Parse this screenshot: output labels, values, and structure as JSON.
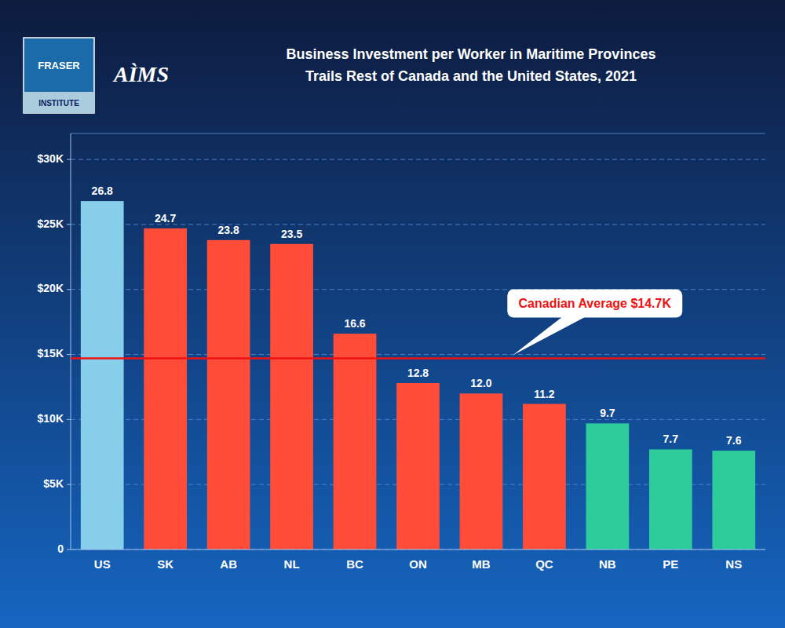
{
  "chart_data": {
    "type": "bar",
    "title": "Business Investment per Worker in Maritime Provinces",
    "subtitle": "Trails Rest of Canada and the United States, 2021",
    "categories": [
      "US",
      "SK",
      "AB",
      "NL",
      "BC",
      "ON",
      "MB",
      "QC",
      "NB",
      "PE",
      "NS"
    ],
    "values": [
      26800,
      24700,
      23800,
      23500,
      16600,
      12800,
      12000,
      11200,
      9700,
      7700,
      7600
    ],
    "value_labels": [
      "26.8",
      "24.7",
      "23.8",
      "23.5",
      "16.6",
      "12.8",
      "12.0",
      "11.2",
      "9.7",
      "7.7",
      "7.6"
    ],
    "data_labels": true,
    "colors": [
      "#87CEEB",
      "#FF4D3A",
      "#FF4D3A",
      "#FF4D3A",
      "#FF4D3A",
      "#FF4D3A",
      "#FF4D3A",
      "#FF4D3A",
      "#2ECC9A",
      "#2ECC9A",
      "#2ECC9A"
    ],
    "ylim": [
      0,
      32000
    ],
    "yticks": [
      0,
      {
        "value": 5000,
        "label": "$5K"
      },
      {
        "value": 10000,
        "label": "$10K"
      },
      {
        "value": 15000,
        "label": "$15K"
      },
      {
        "value": 20000,
        "label": "$20K"
      },
      {
        "value": 25000,
        "label": "$25K"
      },
      {
        "value": 30000,
        "label": "$30K"
      }
    ],
    "grid": true,
    "reference_line": {
      "value": 14700,
      "label": "Canadian Average $14.7K",
      "color": "#EE1111"
    },
    "annotations": [
      "FRASER",
      "INSTITUTE",
      "AÌMS"
    ]
  }
}
